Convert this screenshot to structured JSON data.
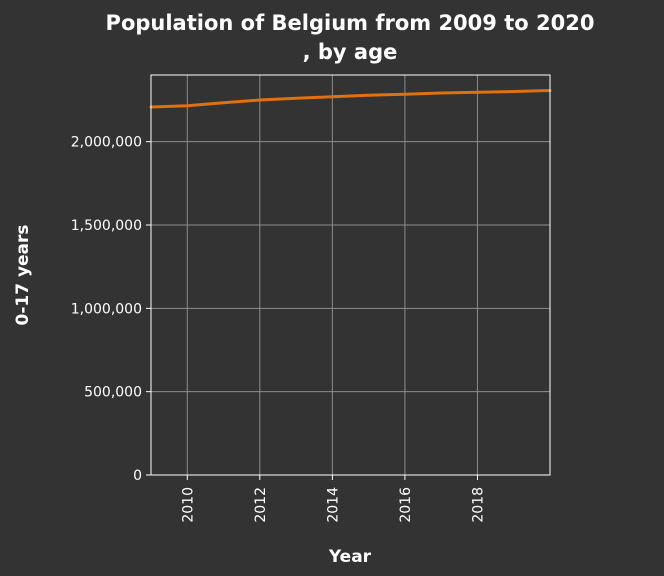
{
  "chart_data": {
    "type": "line",
    "title": "Population of Belgium from 2009 to 2020 , by age",
    "title_lines": [
      "Population of Belgium from 2009 to 2020",
      ", by age"
    ],
    "xlabel": "Year",
    "ylabel": "0-17 years",
    "xlim": [
      2009,
      2020
    ],
    "ylim": [
      0,
      2400000
    ],
    "x_ticks": [
      2010,
      2012,
      2014,
      2016,
      2018
    ],
    "x_tick_labels": [
      "2010",
      "2012",
      "2014",
      "2016",
      "2018"
    ],
    "y_ticks": [
      0,
      500000,
      1000000,
      1500000,
      2000000
    ],
    "y_tick_labels": [
      "0",
      "500,000",
      "1,000,000",
      "1,500,000",
      "2,000,000"
    ],
    "grid": true,
    "series": [
      {
        "color": "#e07010",
        "x": [
          2009,
          2010,
          2011,
          2012,
          2013,
          2014,
          2015,
          2016,
          2017,
          2018,
          2019,
          2020
        ],
        "y": [
          2208000,
          2215000,
          2233000,
          2250000,
          2261000,
          2270000,
          2278000,
          2285000,
          2292000,
          2297000,
          2301000,
          2307000
        ]
      }
    ]
  }
}
